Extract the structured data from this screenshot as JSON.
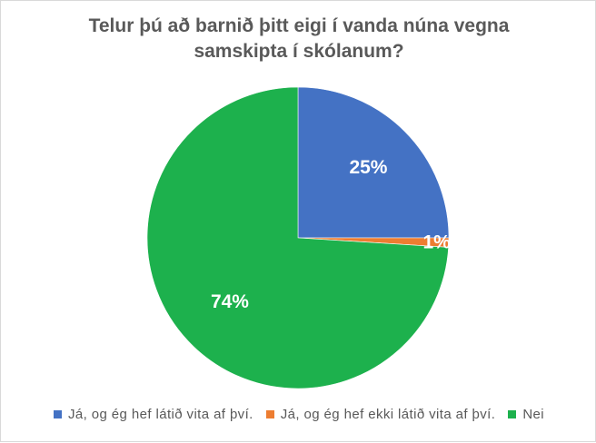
{
  "chart_data": {
    "type": "pie",
    "title_lines": [
      "Telur þú að barnið þitt eigi í vanda núna vegna",
      "samskipta í skólanum?"
    ],
    "categories": [
      "Já, og ég hef látið vita af því.",
      "Já, og ég hef ekki látið vita af því.",
      "Nei"
    ],
    "values": [
      25,
      1,
      74
    ],
    "data_labels": [
      "25%",
      "1%",
      "74%"
    ],
    "colors": [
      "#4472C4",
      "#ED7D31",
      "#1DB14D"
    ],
    "label_colors": [
      "#ffffff",
      "#ffffff",
      "#ffffff"
    ],
    "legend_position": "bottom",
    "start_angle": "12 o'clock",
    "direction": "clockwise"
  }
}
